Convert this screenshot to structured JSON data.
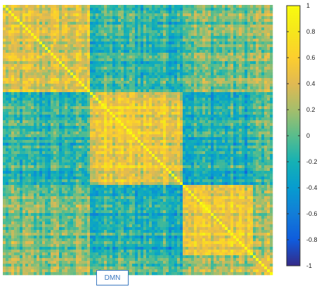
{
  "chart_data": {
    "type": "heatmap",
    "title": "",
    "xlabel": "",
    "ylabel": "",
    "colormap": "parula",
    "clim": [
      -1,
      1
    ],
    "diagonal_value": 1,
    "grid": false,
    "block_boundaries_fraction": [
      0.0,
      0.32,
      0.67,
      0.93,
      1.0
    ],
    "block_mean_correlations": [
      [
        0.35,
        -0.15,
        0.05,
        0.1
      ],
      [
        -0.15,
        0.5,
        -0.2,
        -0.05
      ],
      [
        0.05,
        -0.2,
        0.5,
        0.15
      ],
      [
        0.1,
        -0.05,
        0.15,
        0.3
      ]
    ],
    "highlighted_module": "DMN",
    "colorbar": {
      "ticks": [
        1,
        0.8,
        0.6,
        0.4,
        0.2,
        0,
        -0.2,
        -0.4,
        -0.6,
        -0.8,
        -1
      ],
      "tick_labels": [
        "1",
        "0.8",
        "0.6",
        "0.4",
        "0.2",
        "0",
        "-0.2",
        "-0.4",
        "-0.6",
        "-0.8",
        "-1"
      ]
    }
  },
  "annotations": {
    "dmn_label": "DMN"
  }
}
